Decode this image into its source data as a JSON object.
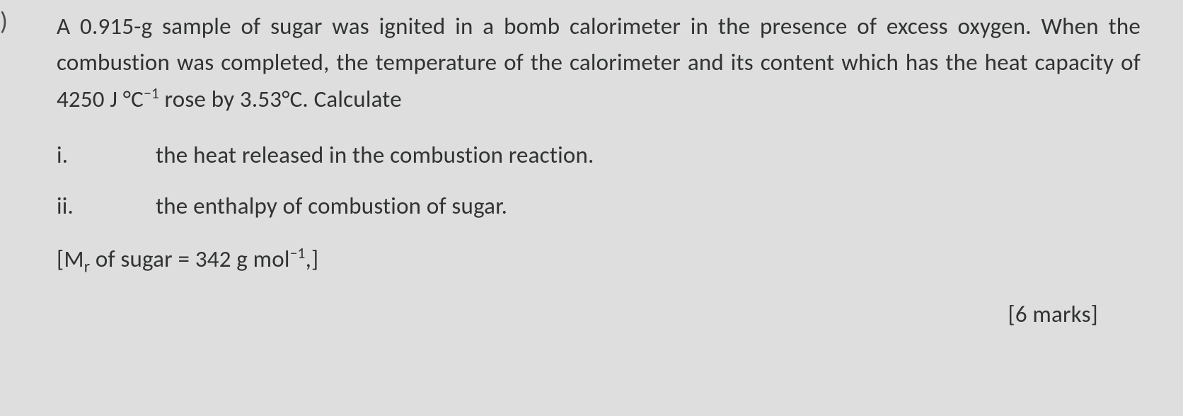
{
  "colors": {
    "background": "#dddedd",
    "text": "#303233",
    "edge_mark": "#4a4d4c"
  },
  "typography": {
    "base_fontsize_pt": 25,
    "line_height": 1.56,
    "font_family": "Calibri, Segoe UI, Arial, sans-serif"
  },
  "edge_mark": ")",
  "paragraph_parts": {
    "p1": "A 0.915-g sample of sugar was ignited in a bomb calorimeter in the presence of excess oxygen. When the combustion was completed, the temperature of the calorimeter and its content which has the heat capacity of 4250 J ",
    "deg": "°C",
    "exp": "−1",
    "p2": " rose by 3.53°C. Calculate"
  },
  "subparts": [
    {
      "label": "i.",
      "text": "the heat released in the combustion reaction."
    },
    {
      "label": "ii.",
      "text": "the enthalpy of combustion of sugar."
    }
  ],
  "mr_line": {
    "open": "[M",
    "sub": "r",
    "mid": " of sugar = 342 g mol",
    "exp": "−1",
    "close": ",]"
  },
  "marks": "[6 marks]"
}
